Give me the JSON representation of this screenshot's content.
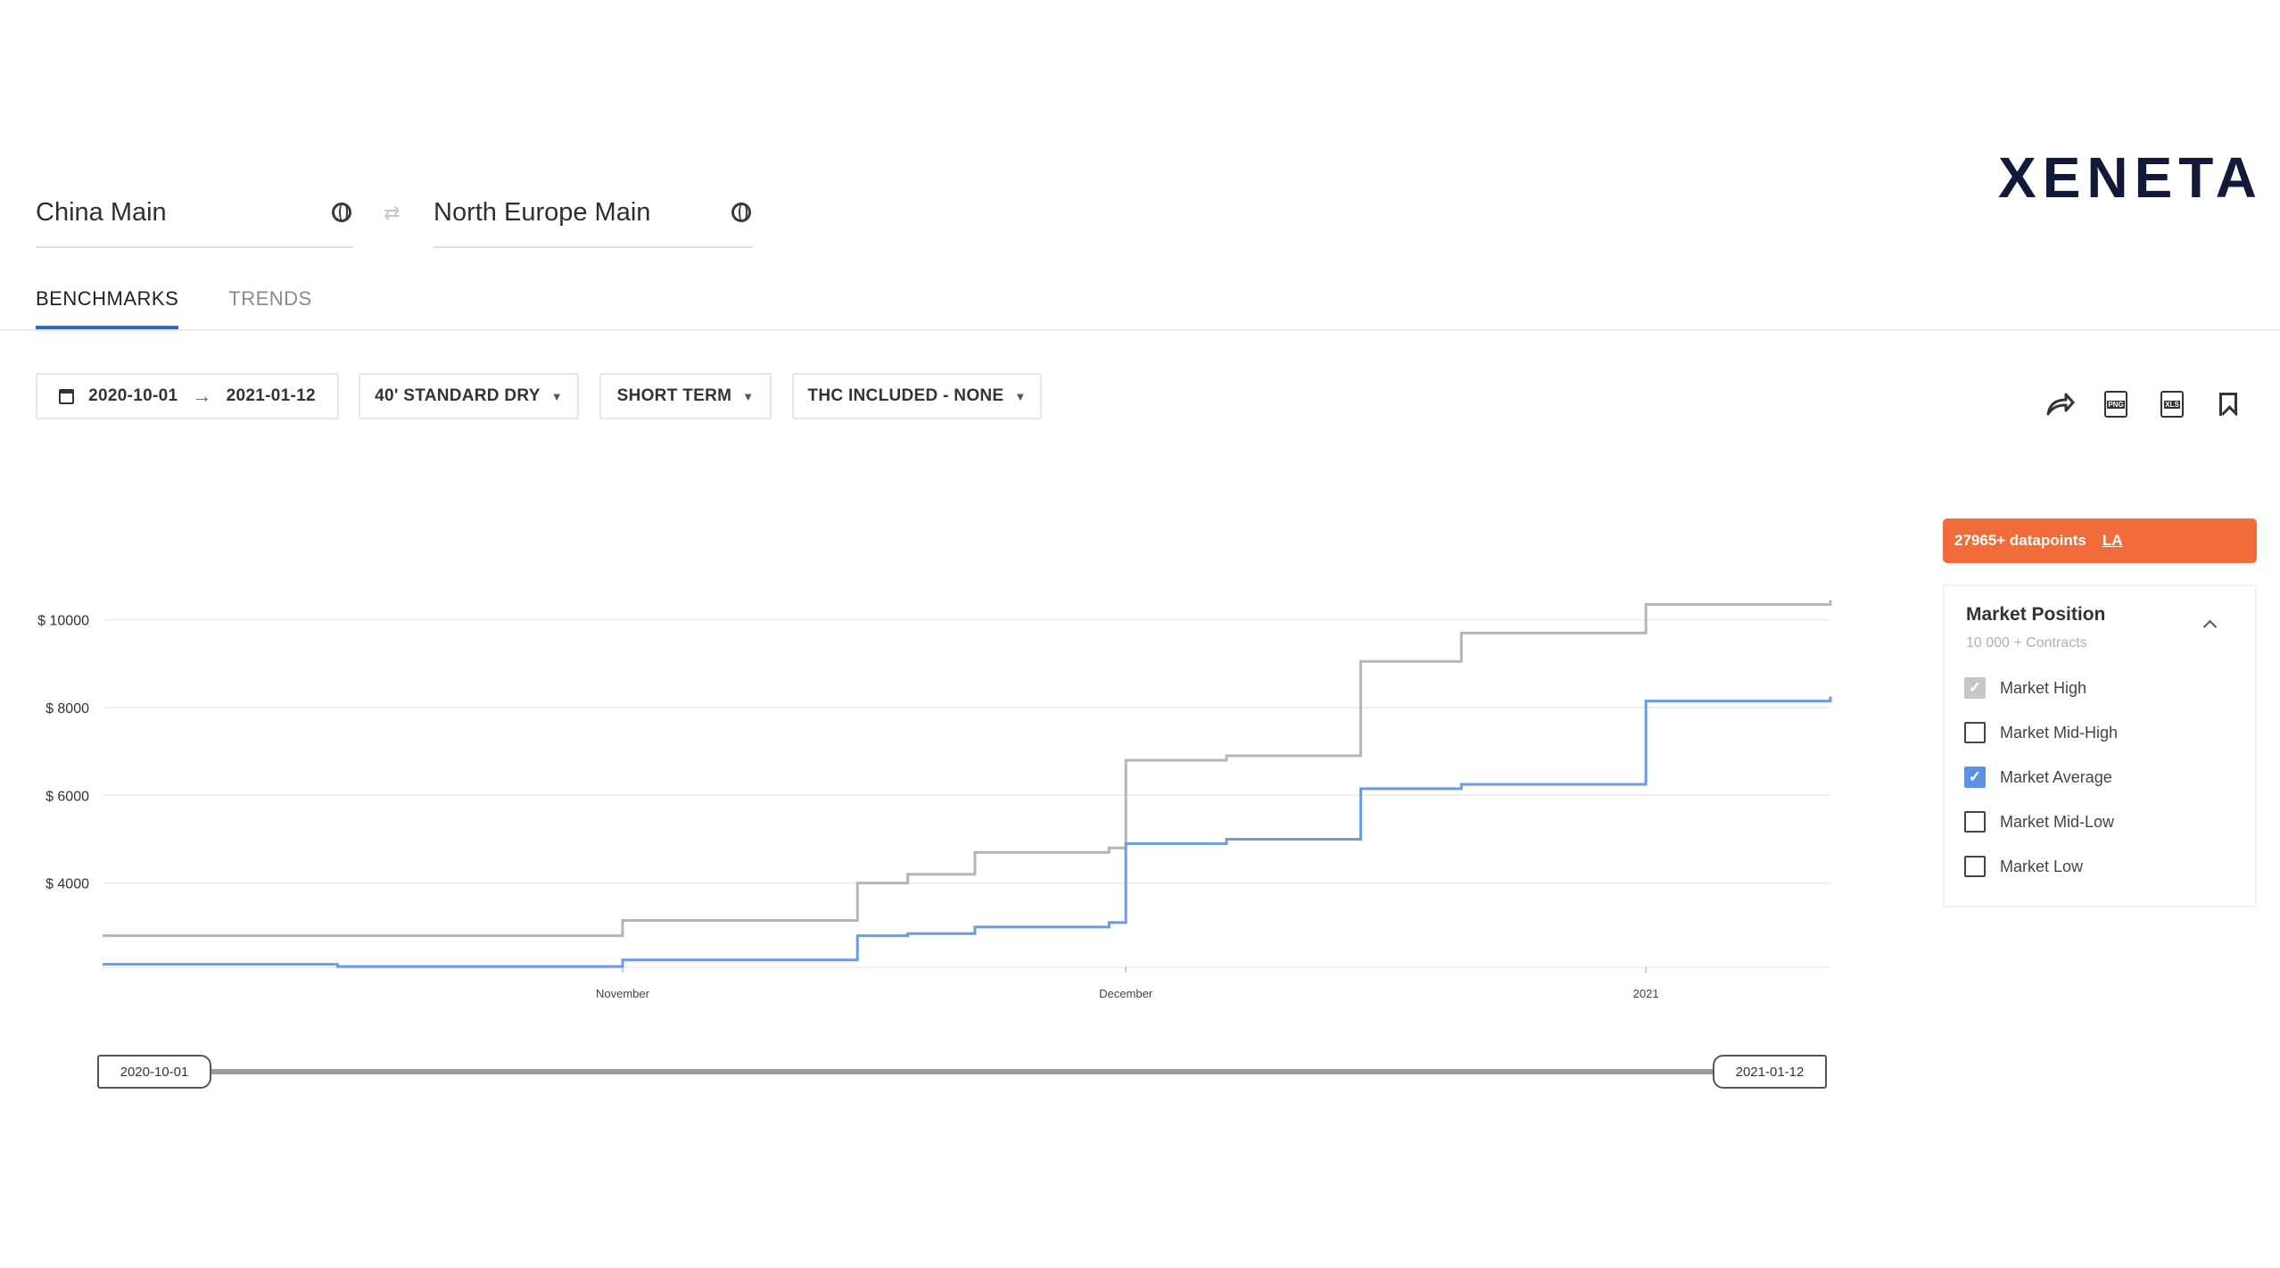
{
  "brand": {
    "logo_text": "XENETA"
  },
  "route": {
    "origin": "China Main",
    "destination": "North Europe Main"
  },
  "tabs": [
    {
      "label": "BENCHMARKS",
      "active": true
    },
    {
      "label": "TRENDS",
      "active": false
    }
  ],
  "filters": {
    "date_from": "2020-10-01",
    "date_to": "2021-01-12",
    "equipment": "40' STANDARD DRY",
    "contract": "SHORT TERM",
    "thc": "THC INCLUDED - NONE"
  },
  "toolbar": {
    "icons": [
      "share-icon",
      "png-export-icon",
      "xls-export-icon",
      "bookmark-icon"
    ],
    "png_label": "PNG",
    "xls_label": "XLS"
  },
  "datapoints": {
    "text": "27965+ datapoints",
    "link": "LA"
  },
  "market_position": {
    "title": "Market Position",
    "subtitle": "10 000 + Contracts",
    "options": [
      {
        "label": "Market High",
        "checked": true,
        "color": "#c6c6c6"
      },
      {
        "label": "Market Mid-High",
        "checked": false
      },
      {
        "label": "Market Average",
        "checked": true,
        "color": "#5d90e6"
      },
      {
        "label": "Market Mid-Low",
        "checked": false
      },
      {
        "label": "Market Low",
        "checked": false
      }
    ]
  },
  "range": {
    "start": "2020-10-01",
    "end": "2021-01-12"
  },
  "chart_data": {
    "type": "line",
    "step": true,
    "y_tick_labels": [
      "$ 10000",
      "$ 8000",
      "$ 6000",
      "$ 4000"
    ],
    "y_ticks": [
      10000,
      8000,
      6000,
      4000
    ],
    "ylim": [
      2000,
      10500
    ],
    "x_tick_labels": [
      "November",
      "December",
      "2021"
    ],
    "x_ticks": [
      "2020-11-01",
      "2020-12-01",
      "2021-01-01"
    ],
    "xlim": [
      "2020-10-01",
      "2021-01-12"
    ],
    "grid": true,
    "series": [
      {
        "name": "Market High",
        "color": "#b5b5b5",
        "points": [
          [
            "2020-10-01",
            2800
          ],
          [
            "2020-10-15",
            2800
          ],
          [
            "2020-11-01",
            3150
          ],
          [
            "2020-11-15",
            3150
          ],
          [
            "2020-11-15",
            4000
          ],
          [
            "2020-11-18",
            4200
          ],
          [
            "2020-11-22",
            4700
          ],
          [
            "2020-11-30",
            4800
          ],
          [
            "2020-12-01",
            6800
          ],
          [
            "2020-12-07",
            6900
          ],
          [
            "2020-12-15",
            9050
          ],
          [
            "2020-12-21",
            9700
          ],
          [
            "2021-01-01",
            10350
          ],
          [
            "2021-01-12",
            10450
          ]
        ]
      },
      {
        "name": "Market Average",
        "color": "#6b9be3",
        "points": [
          [
            "2020-10-01",
            2150
          ],
          [
            "2020-10-15",
            2100
          ],
          [
            "2020-11-01",
            2250
          ],
          [
            "2020-11-15",
            2350
          ],
          [
            "2020-11-15",
            2800
          ],
          [
            "2020-11-18",
            2850
          ],
          [
            "2020-11-22",
            3000
          ],
          [
            "2020-11-30",
            3100
          ],
          [
            "2020-12-01",
            4900
          ],
          [
            "2020-12-07",
            5000
          ],
          [
            "2020-12-15",
            6150
          ],
          [
            "2020-12-21",
            6250
          ],
          [
            "2021-01-01",
            8150
          ],
          [
            "2021-01-12",
            8250
          ]
        ]
      }
    ]
  }
}
